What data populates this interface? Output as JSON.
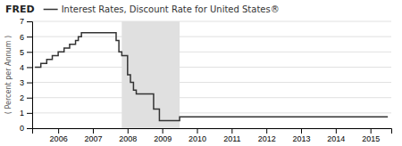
{
  "chart_data": {
    "type": "line",
    "title": "Interest Rates, Discount Rate for United States®",
    "annotations": [
      "FRED"
    ],
    "ylabel": "( Percent per Annum )",
    "x": [
      2005.33,
      2005.5,
      2005.67,
      2005.83,
      2006.0,
      2006.17,
      2006.33,
      2006.5,
      2006.58,
      2006.67,
      2007.0,
      2007.5,
      2007.67,
      2007.75,
      2007.833,
      2008.0,
      2008.083,
      2008.17,
      2008.25,
      2008.583,
      2008.75,
      2008.917,
      2009.0,
      2009.417,
      2009.5,
      2010.0,
      2015.5
    ],
    "series": [
      {
        "color": "#333333",
        "line_style": "step",
        "values": [
          4.0,
          4.25,
          4.5,
          4.75,
          5.0,
          5.25,
          5.5,
          5.75,
          6.0,
          6.25,
          6.25,
          6.25,
          5.75,
          5.0,
          4.75,
          3.5,
          3.0,
          2.5,
          2.25,
          2.25,
          1.25,
          0.5,
          0.5,
          0.5,
          0.75,
          0.75,
          0.75
        ]
      }
    ],
    "spans": [
      {
        "start": 2007.833,
        "end": 2009.5,
        "color": "#e0e0e0"
      }
    ],
    "xlim": [
      2005.25,
      2015.6
    ],
    "xticks": [
      2006,
      2007,
      2008,
      2009,
      2010,
      2011,
      2012,
      2013,
      2014,
      2015
    ],
    "ylim": [
      0,
      7
    ],
    "yticks": [
      0,
      1,
      2,
      3,
      4,
      5,
      6,
      7
    ],
    "grid": "y"
  }
}
